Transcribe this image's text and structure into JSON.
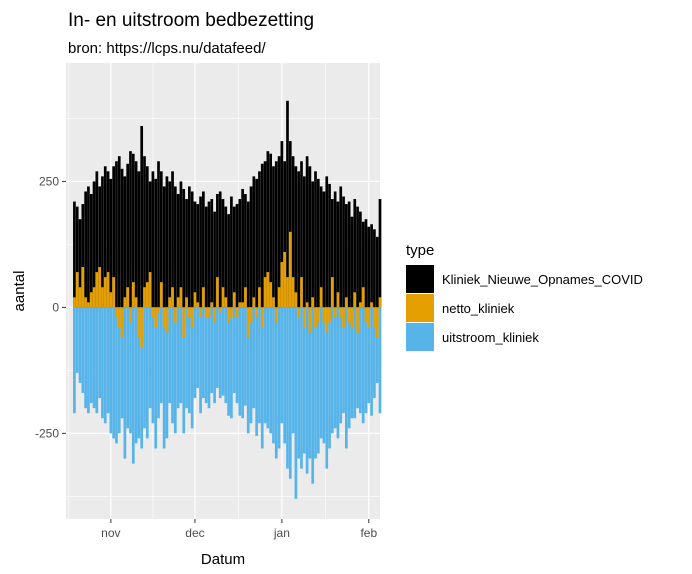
{
  "chart_data": {
    "type": "bar",
    "title": "In- en uitstroom bedbezetting",
    "subtitle": "bron: https://lcps.nu/datafeed/",
    "xlabel": "Datum",
    "ylabel": "aantal",
    "x_range": [
      "2020-10-16",
      "2021-02-05"
    ],
    "ylim": [
      -420,
      485
    ],
    "x_ticks": [
      {
        "date": "2020-11-01",
        "label": "nov"
      },
      {
        "date": "2020-12-01",
        "label": "dec"
      },
      {
        "date": "2021-01-01",
        "label": "jan"
      },
      {
        "date": "2021-02-01",
        "label": "feb"
      }
    ],
    "y_ticks": [
      -250,
      0,
      250
    ],
    "grid": true,
    "legend": {
      "title": "type",
      "position": "right",
      "entries": [
        {
          "label": "Kliniek_Nieuwe_Opnames_COVID",
          "color": "#000000"
        },
        {
          "label": "netto_kliniek",
          "color": "#E69F00"
        },
        {
          "label": "uitstroom_kliniek",
          "color": "#56B4E9"
        }
      ]
    },
    "start_date": "2020-10-19",
    "series": [
      {
        "name": "Kliniek_Nieuwe_Opnames_COVID",
        "values": [
          210,
          200,
          175,
          205,
          230,
          240,
          225,
          250,
          270,
          240,
          260,
          280,
          270,
          255,
          280,
          290,
          300,
          275,
          260,
          285,
          310,
          305,
          290,
          270,
          360,
          300,
          280,
          250,
          270,
          255,
          290,
          270,
          240,
          260,
          250,
          270,
          240,
          225,
          250,
          235,
          215,
          240,
          230,
          210,
          205,
          220,
          230,
          200,
          210,
          215,
          190,
          225,
          230,
          215,
          200,
          185,
          220,
          200,
          205,
          215,
          235,
          225,
          210,
          240,
          260,
          255,
          270,
          285,
          290,
          310,
          305,
          280,
          290,
          300,
          330,
          290,
          410,
          330,
          300,
          280,
          270,
          290,
          260,
          300,
          280,
          250,
          270,
          255,
          240,
          230,
          260,
          245,
          215,
          230,
          210,
          240,
          220,
          205,
          210,
          180,
          215,
          200,
          190,
          170,
          175,
          160,
          165,
          155,
          140,
          215
        ]
      },
      {
        "name": "netto_kliniek",
        "values": [
          20,
          70,
          40,
          80,
          20,
          10,
          30,
          40,
          70,
          80,
          40,
          60,
          70,
          30,
          60,
          -20,
          -40,
          -60,
          20,
          40,
          -30,
          50,
          20,
          -60,
          -80,
          40,
          50,
          70,
          -20,
          -40,
          -10,
          50,
          -40,
          -50,
          20,
          40,
          -30,
          20,
          40,
          -60,
          20,
          -20,
          -40,
          30,
          10,
          -20,
          40,
          -20,
          -20,
          10,
          -30,
          60,
          -10,
          40,
          20,
          -30,
          -20,
          30,
          -20,
          10,
          10,
          40,
          -60,
          -30,
          20,
          -20,
          40,
          -40,
          60,
          70,
          50,
          20,
          -30,
          40,
          90,
          110,
          60,
          150,
          60,
          30,
          -20,
          60,
          -40,
          10,
          -50,
          20,
          -40,
          -30,
          40,
          -30,
          -50,
          -30,
          60,
          -20,
          30,
          -20,
          -40,
          20,
          -30,
          -40,
          30,
          -50,
          10,
          40,
          -30,
          -40,
          10,
          -40,
          -60,
          20
        ]
      },
      {
        "name": "uitstroom_kliniek",
        "values": [
          -210,
          -130,
          -150,
          -170,
          -200,
          -210,
          -190,
          -200,
          -210,
          -180,
          -220,
          -230,
          -210,
          -250,
          -260,
          -270,
          -250,
          -220,
          -300,
          -240,
          -250,
          -310,
          -270,
          -260,
          -280,
          -240,
          -260,
          -200,
          -230,
          -280,
          -220,
          -190,
          -280,
          -260,
          -190,
          -230,
          -250,
          -200,
          -190,
          -250,
          -200,
          -210,
          -240,
          -180,
          -160,
          -210,
          -180,
          -190,
          -200,
          -170,
          -190,
          -160,
          -180,
          -175,
          -190,
          -215,
          -220,
          -170,
          -190,
          -215,
          -220,
          -195,
          -250,
          -230,
          -200,
          -255,
          -230,
          -280,
          -230,
          -240,
          -250,
          -270,
          -300,
          -280,
          -230,
          -270,
          -320,
          -340,
          -250,
          -380,
          -300,
          -320,
          -290,
          -330,
          -300,
          -350,
          -300,
          -290,
          -260,
          -270,
          -320,
          -280,
          -250,
          -240,
          -260,
          -230,
          -210,
          -280,
          -240,
          -220,
          -220,
          -200,
          -210,
          -230,
          -210,
          -190,
          -215,
          -180,
          -150,
          -210
        ]
      }
    ]
  }
}
